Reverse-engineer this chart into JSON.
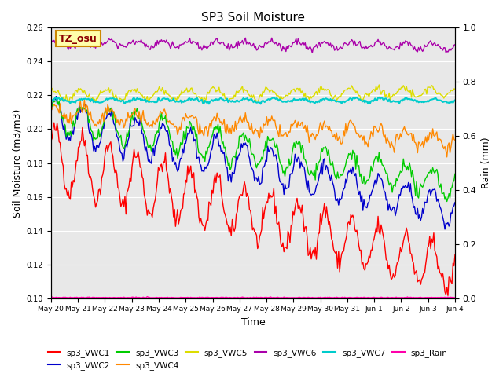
{
  "title": "SP3 Soil Moisture",
  "xlabel": "Time",
  "ylabel_left": "Soil Moisture (m3/m3)",
  "ylabel_right": "Rain (mm)",
  "ylim_left": [
    0.1,
    0.26
  ],
  "ylim_right": [
    0.0,
    1.0
  ],
  "num_points": 400,
  "xtick_labels": [
    "May 20",
    "May 21",
    "May 22",
    "May 23",
    "May 24",
    "May 25",
    "May 26",
    "May 27",
    "May 28",
    "May 29",
    "May 30",
    "May 31",
    "Jun 1",
    "Jun 2",
    "Jun 3",
    "Jun 4"
  ],
  "series_colors": {
    "sp3_VWC1": "#ff0000",
    "sp3_VWC2": "#0000cc",
    "sp3_VWC3": "#00cc00",
    "sp3_VWC4": "#ff8800",
    "sp3_VWC5": "#dddd00",
    "sp3_VWC6": "#aa00aa",
    "sp3_VWC7": "#00cccc",
    "sp3_Rain": "#ff00aa"
  },
  "annotation_label": "TZ_osu",
  "annotation_bg": "#ffffaa",
  "annotation_border": "#cc8800",
  "background_color": "#e8e8e8"
}
